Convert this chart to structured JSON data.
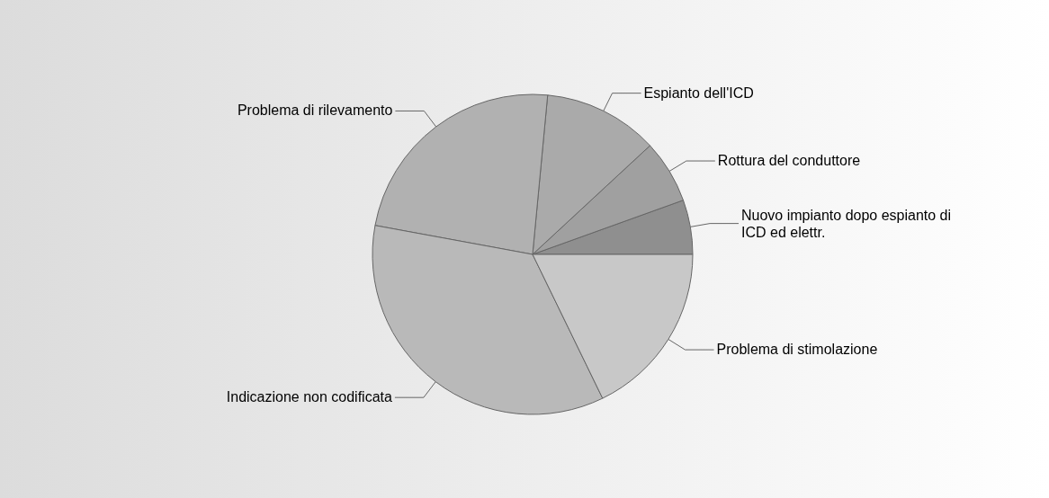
{
  "chart_data": {
    "type": "pie",
    "categories": [
      "Nuovo impianto dopo espianto di ICD ed elettr.",
      "Rottura del conduttore",
      "Espianto dell'ICD",
      "Problema di rilevamento",
      "Indicazione non codificata",
      "Problema di stimolazione"
    ],
    "values": [
      5.5,
      6.4,
      11.6,
      23.6,
      35.1,
      17.8
    ],
    "colors": [
      "#8f8f8f",
      "#a0a0a0",
      "#aaaaaa",
      "#b1b1b1",
      "#b9b9b9",
      "#c8c8c8"
    ],
    "legend": "right"
  }
}
